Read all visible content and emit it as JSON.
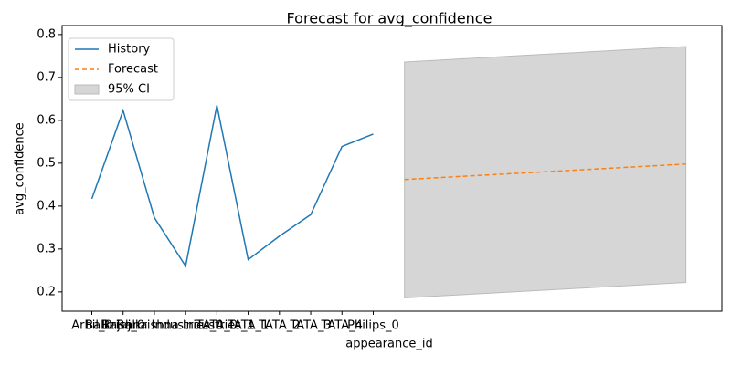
{
  "chart_data": {
    "type": "line",
    "title": "Forecast for avg_confidence",
    "x_label": "appearance_id",
    "y_label": "avg_confidence",
    "categories": [
      "Arbil_0",
      "Bajaj_0",
      "Balkrishna Industries_0",
      "Balkrishna Industries_1",
      "TATA_0",
      "TATA_1",
      "TATA_2",
      "TATA_3",
      "TATA_4",
      "Philips_0"
    ],
    "series": [
      {
        "name": "History",
        "color": "#1f77b4",
        "values": [
          0.417,
          0.623,
          0.373,
          0.26,
          0.635,
          0.275,
          0.33,
          0.38,
          0.539,
          0.568
        ]
      },
      {
        "name": "Forecast",
        "color": "#ff7f0e",
        "dashed": true,
        "x": [
          10,
          11,
          12,
          13,
          14,
          15,
          16,
          17,
          18,
          19
        ],
        "values": [
          0.462,
          0.466,
          0.47,
          0.474,
          0.478,
          0.482,
          0.486,
          0.49,
          0.494,
          0.498
        ]
      }
    ],
    "band": {
      "name": "95% CI",
      "color": "#d6d6d6",
      "x": [
        10,
        11,
        12,
        13,
        14,
        15,
        16,
        17,
        18,
        19
      ],
      "lower": [
        0.186,
        0.19,
        0.194,
        0.198,
        0.202,
        0.206,
        0.21,
        0.214,
        0.218,
        0.222
      ],
      "upper": [
        0.736,
        0.74,
        0.744,
        0.748,
        0.752,
        0.756,
        0.76,
        0.764,
        0.768,
        0.772
      ]
    },
    "xlim": [
      -0.95,
      20.15
    ],
    "ylim": [
      0.155,
      0.821
    ],
    "yticks": [
      0.2,
      0.3,
      0.4,
      0.5,
      0.6,
      0.7,
      0.8
    ],
    "legend": "upper left"
  }
}
